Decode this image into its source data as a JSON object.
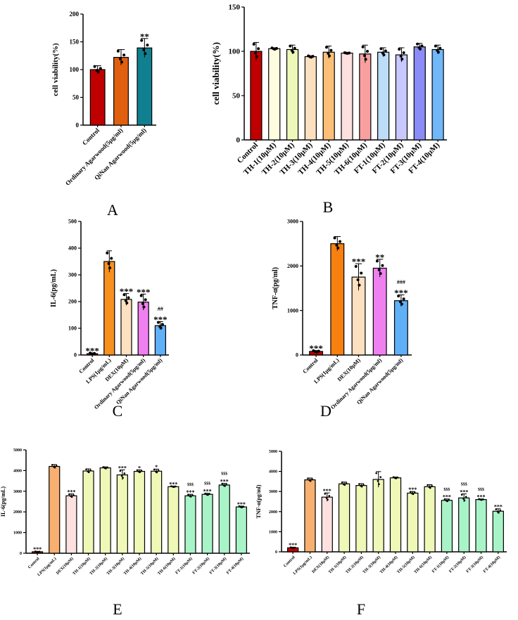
{
  "chart_data": [
    {
      "panel": "A",
      "type": "bar",
      "ylabel": "cell viability(%)",
      "ylim": [
        0,
        200
      ],
      "yticks": [
        0,
        50,
        100,
        150,
        200
      ],
      "categories": [
        "Control",
        "Ordinary Agarwood(5μg/ml)",
        "QiNan Agarwood(5μg/ml)"
      ],
      "values": [
        100,
        122,
        139
      ],
      "errors": [
        7,
        14,
        17
      ],
      "colors": [
        "#c00000",
        "#e06010",
        "#108090"
      ],
      "annotations": [
        "",
        "",
        "**"
      ]
    },
    {
      "panel": "B",
      "type": "bar",
      "ylabel": "cell viability(%)",
      "ylim": [
        0,
        150
      ],
      "yticks": [
        0,
        50,
        100,
        150
      ],
      "categories": [
        "Control",
        "TH-1(10μM)",
        "TH-2(10μM)",
        "TH-3(10μM)",
        "TH-4(10μM)",
        "TH-5(10μM)",
        "TH-6(10μM)",
        "FT-1(10μM)",
        "FT-2(10μM)",
        "FT-3(10μM)",
        "FT-4(10μM)"
      ],
      "values": [
        100,
        103,
        102,
        94,
        99,
        98,
        97,
        99,
        96,
        105,
        102
      ],
      "errors": [
        10,
        1,
        5,
        1,
        7,
        0.5,
        10,
        5,
        8,
        4,
        5
      ],
      "colors": [
        "#c00000",
        "#fffde0",
        "#eef8b8",
        "#fde0c0",
        "#fbbf78",
        "#fde0e0",
        "#f8a0a0",
        "#bcdcf8",
        "#c8c8ff",
        "#8c8cf8",
        "#70b8f8"
      ],
      "annotations": [
        "",
        "",
        "",
        "",
        "",
        "",
        "",
        "",
        "",
        "",
        ""
      ]
    },
    {
      "panel": "C",
      "type": "bar",
      "ylabel": "IL-6(pg/mL)",
      "ylim": [
        0,
        500
      ],
      "yticks": [
        0,
        100,
        200,
        300,
        400,
        500
      ],
      "categories": [
        "Control",
        "LPS(1μg/mL)",
        "DEX(10μM)",
        "Ordinary Agarwood(5μg/ml)",
        "QiNan Agarwood(5μg/ml)"
      ],
      "values": [
        5,
        350,
        208,
        198,
        110
      ],
      "errors": [
        3,
        40,
        22,
        30,
        15
      ],
      "colors": [
        "#c00000",
        "#f89020",
        "#fde0c0",
        "#f080f0",
        "#60b0f8"
      ],
      "annotations": [
        "***",
        "",
        "***",
        "***",
        "***"
      ],
      "annotations2": [
        "",
        "",
        "",
        "",
        "##"
      ]
    },
    {
      "panel": "D",
      "type": "bar",
      "ylabel": "TNF-α(pg/ml)",
      "ylim": [
        0,
        3000
      ],
      "yticks": [
        0,
        1000,
        2000,
        3000
      ],
      "categories": [
        "Control",
        "LPS(1μg/mL)",
        "DEX(10μM)",
        "Ordinary Agarwood(5μg/ml)",
        "QiNan Agarwood(5μg/ml)"
      ],
      "values": [
        80,
        2500,
        1750,
        1950,
        1220
      ],
      "errors": [
        20,
        160,
        300,
        200,
        130
      ],
      "colors": [
        "#c00000",
        "#f88010",
        "#fde0c0",
        "#f080f0",
        "#60b0f8"
      ],
      "annotations": [
        "***",
        "",
        "***",
        "**",
        "***"
      ],
      "annotations2": [
        "",
        "",
        "",
        "",
        "###"
      ]
    },
    {
      "panel": "E",
      "type": "bar",
      "ylabel": "IL-6(pg/mL)",
      "ylim": [
        0,
        5000
      ],
      "yticks": [
        0,
        1000,
        2000,
        3000,
        4000,
        5000
      ],
      "categories": [
        "Control",
        "LPS(1μg/mL)",
        "DEX(10μM)",
        "TH-1(10μM)",
        "TH-2(10μM)",
        "TH-3(10μM)",
        "TH-4(10μM)",
        "TH-5(10μM)",
        "TH-6(10μM)",
        "FT-1(10μM)",
        "FT-2(10μM)",
        "FT-3(10μM)",
        "FT-4(10μM)"
      ],
      "values": [
        70,
        4200,
        2780,
        3980,
        4130,
        3790,
        3960,
        3970,
        3220,
        2780,
        2850,
        3300,
        2240
      ],
      "errors": [
        20,
        90,
        90,
        100,
        50,
        240,
        70,
        100,
        30,
        70,
        50,
        80,
        40
      ],
      "colors": [
        "#c00000",
        "#f8b070",
        "#fde0e0",
        "#f0f8b8",
        "#f0f8b8",
        "#f0f8b8",
        "#f0f8b8",
        "#f0f8b8",
        "#f0f8b8",
        "#a8f4c8",
        "#a8f4c8",
        "#a8f4c8",
        "#a8f4c8"
      ],
      "annotations": [
        "***",
        "",
        "***",
        "",
        "",
        "***",
        "*",
        "*",
        "***",
        "***",
        "***",
        "***",
        "***"
      ],
      "annotations2": [
        "",
        "",
        "",
        "",
        "",
        "",
        "",
        "",
        "",
        "$$$",
        "$$$",
        "$$$",
        ""
      ]
    },
    {
      "panel": "F",
      "type": "bar",
      "ylabel": "TNF-α(pg/ml)",
      "ylim": [
        0,
        5000
      ],
      "yticks": [
        0,
        1000,
        2000,
        3000,
        4000,
        5000
      ],
      "categories": [
        "Control",
        "LPS(1μg/mL)",
        "DEX(10μM)",
        "TH-1(10μM)",
        "TH-2(10μM)",
        "TH-3(10μM)",
        "TH-4(10μM)",
        "TH-5(10μM)",
        "TH-6(10μM)",
        "FT-1(10μM)",
        "FT-2(10μM)",
        "FT-3(10μM)",
        "FT-4(10μM)"
      ],
      "values": [
        200,
        3580,
        2720,
        3380,
        3300,
        3600,
        3680,
        2920,
        3240,
        2560,
        2680,
        2600,
        2020
      ],
      "errors": [
        30,
        90,
        210,
        90,
        90,
        390,
        40,
        80,
        100,
        70,
        200,
        30,
        120
      ],
      "colors": [
        "#c00000",
        "#f8b070",
        "#fde0e0",
        "#f0f8b8",
        "#f0f8b8",
        "#f0f8b8",
        "#f0f8b8",
        "#f0f8b8",
        "#f0f8b8",
        "#a8f4c8",
        "#a8f4c8",
        "#a8f4c8",
        "#a8f4c8"
      ],
      "annotations": [
        "***",
        "",
        "***",
        "",
        "",
        "",
        "",
        "***",
        "",
        "***",
        "***",
        "***",
        "***"
      ],
      "annotations2": [
        "",
        "",
        "",
        "",
        "",
        "",
        "",
        "",
        "",
        "$$$",
        "$$$",
        "$$$",
        ""
      ]
    }
  ]
}
